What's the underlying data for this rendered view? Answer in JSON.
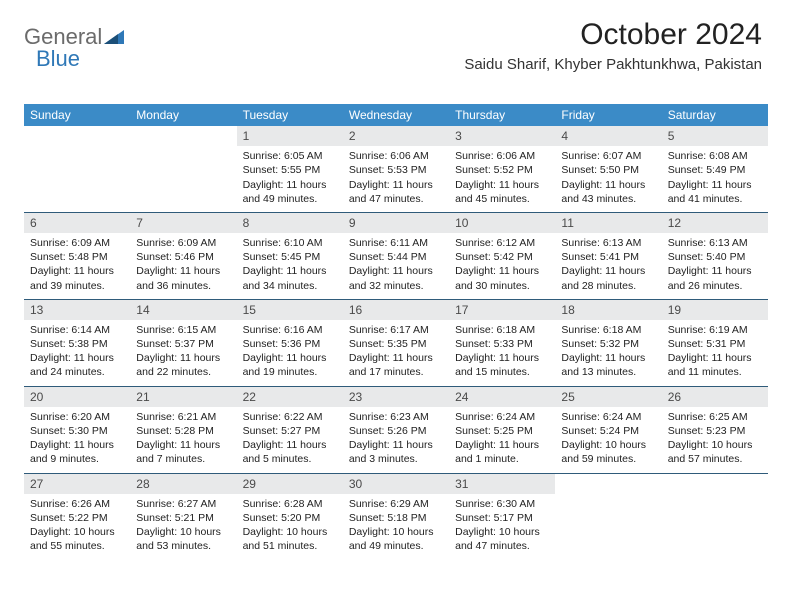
{
  "logo": {
    "part1": "General",
    "part2": "Blue"
  },
  "title": "October 2024",
  "subtitle": "Saidu Sharif, Khyber Pakhtunkhwa, Pakistan",
  "colors": {
    "header_bar": "#3b8bc7",
    "daynum_bg": "#e8e9ea",
    "week_border": "#2f5b7a",
    "logo_gray": "#6b6b6b",
    "logo_blue": "#2f78b7"
  },
  "dow": [
    "Sunday",
    "Monday",
    "Tuesday",
    "Wednesday",
    "Thursday",
    "Friday",
    "Saturday"
  ],
  "weeks": [
    [
      {
        "n": "",
        "sr": "",
        "ss": "",
        "dl": ""
      },
      {
        "n": "",
        "sr": "",
        "ss": "",
        "dl": ""
      },
      {
        "n": "1",
        "sr": "Sunrise: 6:05 AM",
        "ss": "Sunset: 5:55 PM",
        "dl": "Daylight: 11 hours and 49 minutes."
      },
      {
        "n": "2",
        "sr": "Sunrise: 6:06 AM",
        "ss": "Sunset: 5:53 PM",
        "dl": "Daylight: 11 hours and 47 minutes."
      },
      {
        "n": "3",
        "sr": "Sunrise: 6:06 AM",
        "ss": "Sunset: 5:52 PM",
        "dl": "Daylight: 11 hours and 45 minutes."
      },
      {
        "n": "4",
        "sr": "Sunrise: 6:07 AM",
        "ss": "Sunset: 5:50 PM",
        "dl": "Daylight: 11 hours and 43 minutes."
      },
      {
        "n": "5",
        "sr": "Sunrise: 6:08 AM",
        "ss": "Sunset: 5:49 PM",
        "dl": "Daylight: 11 hours and 41 minutes."
      }
    ],
    [
      {
        "n": "6",
        "sr": "Sunrise: 6:09 AM",
        "ss": "Sunset: 5:48 PM",
        "dl": "Daylight: 11 hours and 39 minutes."
      },
      {
        "n": "7",
        "sr": "Sunrise: 6:09 AM",
        "ss": "Sunset: 5:46 PM",
        "dl": "Daylight: 11 hours and 36 minutes."
      },
      {
        "n": "8",
        "sr": "Sunrise: 6:10 AM",
        "ss": "Sunset: 5:45 PM",
        "dl": "Daylight: 11 hours and 34 minutes."
      },
      {
        "n": "9",
        "sr": "Sunrise: 6:11 AM",
        "ss": "Sunset: 5:44 PM",
        "dl": "Daylight: 11 hours and 32 minutes."
      },
      {
        "n": "10",
        "sr": "Sunrise: 6:12 AM",
        "ss": "Sunset: 5:42 PM",
        "dl": "Daylight: 11 hours and 30 minutes."
      },
      {
        "n": "11",
        "sr": "Sunrise: 6:13 AM",
        "ss": "Sunset: 5:41 PM",
        "dl": "Daylight: 11 hours and 28 minutes."
      },
      {
        "n": "12",
        "sr": "Sunrise: 6:13 AM",
        "ss": "Sunset: 5:40 PM",
        "dl": "Daylight: 11 hours and 26 minutes."
      }
    ],
    [
      {
        "n": "13",
        "sr": "Sunrise: 6:14 AM",
        "ss": "Sunset: 5:38 PM",
        "dl": "Daylight: 11 hours and 24 minutes."
      },
      {
        "n": "14",
        "sr": "Sunrise: 6:15 AM",
        "ss": "Sunset: 5:37 PM",
        "dl": "Daylight: 11 hours and 22 minutes."
      },
      {
        "n": "15",
        "sr": "Sunrise: 6:16 AM",
        "ss": "Sunset: 5:36 PM",
        "dl": "Daylight: 11 hours and 19 minutes."
      },
      {
        "n": "16",
        "sr": "Sunrise: 6:17 AM",
        "ss": "Sunset: 5:35 PM",
        "dl": "Daylight: 11 hours and 17 minutes."
      },
      {
        "n": "17",
        "sr": "Sunrise: 6:18 AM",
        "ss": "Sunset: 5:33 PM",
        "dl": "Daylight: 11 hours and 15 minutes."
      },
      {
        "n": "18",
        "sr": "Sunrise: 6:18 AM",
        "ss": "Sunset: 5:32 PM",
        "dl": "Daylight: 11 hours and 13 minutes."
      },
      {
        "n": "19",
        "sr": "Sunrise: 6:19 AM",
        "ss": "Sunset: 5:31 PM",
        "dl": "Daylight: 11 hours and 11 minutes."
      }
    ],
    [
      {
        "n": "20",
        "sr": "Sunrise: 6:20 AM",
        "ss": "Sunset: 5:30 PM",
        "dl": "Daylight: 11 hours and 9 minutes."
      },
      {
        "n": "21",
        "sr": "Sunrise: 6:21 AM",
        "ss": "Sunset: 5:28 PM",
        "dl": "Daylight: 11 hours and 7 minutes."
      },
      {
        "n": "22",
        "sr": "Sunrise: 6:22 AM",
        "ss": "Sunset: 5:27 PM",
        "dl": "Daylight: 11 hours and 5 minutes."
      },
      {
        "n": "23",
        "sr": "Sunrise: 6:23 AM",
        "ss": "Sunset: 5:26 PM",
        "dl": "Daylight: 11 hours and 3 minutes."
      },
      {
        "n": "24",
        "sr": "Sunrise: 6:24 AM",
        "ss": "Sunset: 5:25 PM",
        "dl": "Daylight: 11 hours and 1 minute."
      },
      {
        "n": "25",
        "sr": "Sunrise: 6:24 AM",
        "ss": "Sunset: 5:24 PM",
        "dl": "Daylight: 10 hours and 59 minutes."
      },
      {
        "n": "26",
        "sr": "Sunrise: 6:25 AM",
        "ss": "Sunset: 5:23 PM",
        "dl": "Daylight: 10 hours and 57 minutes."
      }
    ],
    [
      {
        "n": "27",
        "sr": "Sunrise: 6:26 AM",
        "ss": "Sunset: 5:22 PM",
        "dl": "Daylight: 10 hours and 55 minutes."
      },
      {
        "n": "28",
        "sr": "Sunrise: 6:27 AM",
        "ss": "Sunset: 5:21 PM",
        "dl": "Daylight: 10 hours and 53 minutes."
      },
      {
        "n": "29",
        "sr": "Sunrise: 6:28 AM",
        "ss": "Sunset: 5:20 PM",
        "dl": "Daylight: 10 hours and 51 minutes."
      },
      {
        "n": "30",
        "sr": "Sunrise: 6:29 AM",
        "ss": "Sunset: 5:18 PM",
        "dl": "Daylight: 10 hours and 49 minutes."
      },
      {
        "n": "31",
        "sr": "Sunrise: 6:30 AM",
        "ss": "Sunset: 5:17 PM",
        "dl": "Daylight: 10 hours and 47 minutes."
      },
      {
        "n": "",
        "sr": "",
        "ss": "",
        "dl": ""
      },
      {
        "n": "",
        "sr": "",
        "ss": "",
        "dl": ""
      }
    ]
  ]
}
